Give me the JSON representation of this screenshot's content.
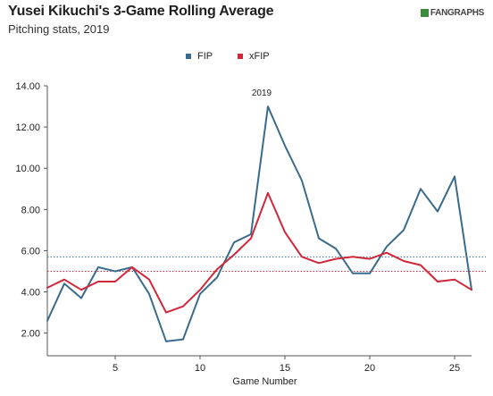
{
  "header": {
    "title": "Yusei Kikuchi's 3-Game Rolling Average",
    "subtitle": "Pitching stats, 2019",
    "logo": "FANGRAPHS"
  },
  "colors": {
    "fip": "#3a6b8c",
    "xfip": "#d0283a",
    "axis": "#555555"
  },
  "chart_data": {
    "type": "line",
    "title": "Yusei Kikuchi's 3-Game Rolling Average",
    "subtitle": "Pitching stats, 2019",
    "xlabel": "Game Number",
    "ylabel": "",
    "xlim": [
      1,
      26
    ],
    "ylim": [
      0.9,
      14.0
    ],
    "xticks": [
      5,
      10,
      15,
      20,
      25
    ],
    "yticks": [
      2.0,
      4.0,
      6.0,
      8.0,
      10.0,
      12.0,
      14.0
    ],
    "ytick_labels": [
      "2.00",
      "4.00",
      "6.00",
      "8.00",
      "10.00",
      "12.00",
      "14.00"
    ],
    "legend": {
      "placement": "top-center",
      "entries": [
        "FIP",
        "xFIP"
      ]
    },
    "annotations": [
      {
        "text": "2019",
        "x": 14,
        "y": 13.3
      }
    ],
    "x": [
      1,
      2,
      3,
      4,
      5,
      6,
      7,
      8,
      9,
      10,
      11,
      12,
      13,
      14,
      15,
      16,
      17,
      18,
      19,
      20,
      21,
      22,
      23,
      24,
      25,
      26
    ],
    "series": [
      {
        "name": "FIP",
        "color": "#3a6b8c",
        "values": [
          2.6,
          4.4,
          3.7,
          5.2,
          5.0,
          5.2,
          3.9,
          1.6,
          1.7,
          3.9,
          4.7,
          6.4,
          6.8,
          13.0,
          11.1,
          9.4,
          6.6,
          6.1,
          4.9,
          4.9,
          6.2,
          7.0,
          9.0,
          7.9,
          9.6,
          4.1
        ],
        "mean_line": 5.7
      },
      {
        "name": "xFIP",
        "color": "#d0283a",
        "values": [
          4.2,
          4.6,
          4.1,
          4.5,
          4.5,
          5.2,
          4.6,
          3.0,
          3.3,
          4.1,
          5.1,
          5.8,
          6.6,
          8.8,
          6.9,
          5.7,
          5.4,
          5.6,
          5.7,
          5.6,
          5.9,
          5.5,
          5.3,
          4.5,
          4.6,
          4.1
        ],
        "mean_line": 5.0
      }
    ]
  }
}
